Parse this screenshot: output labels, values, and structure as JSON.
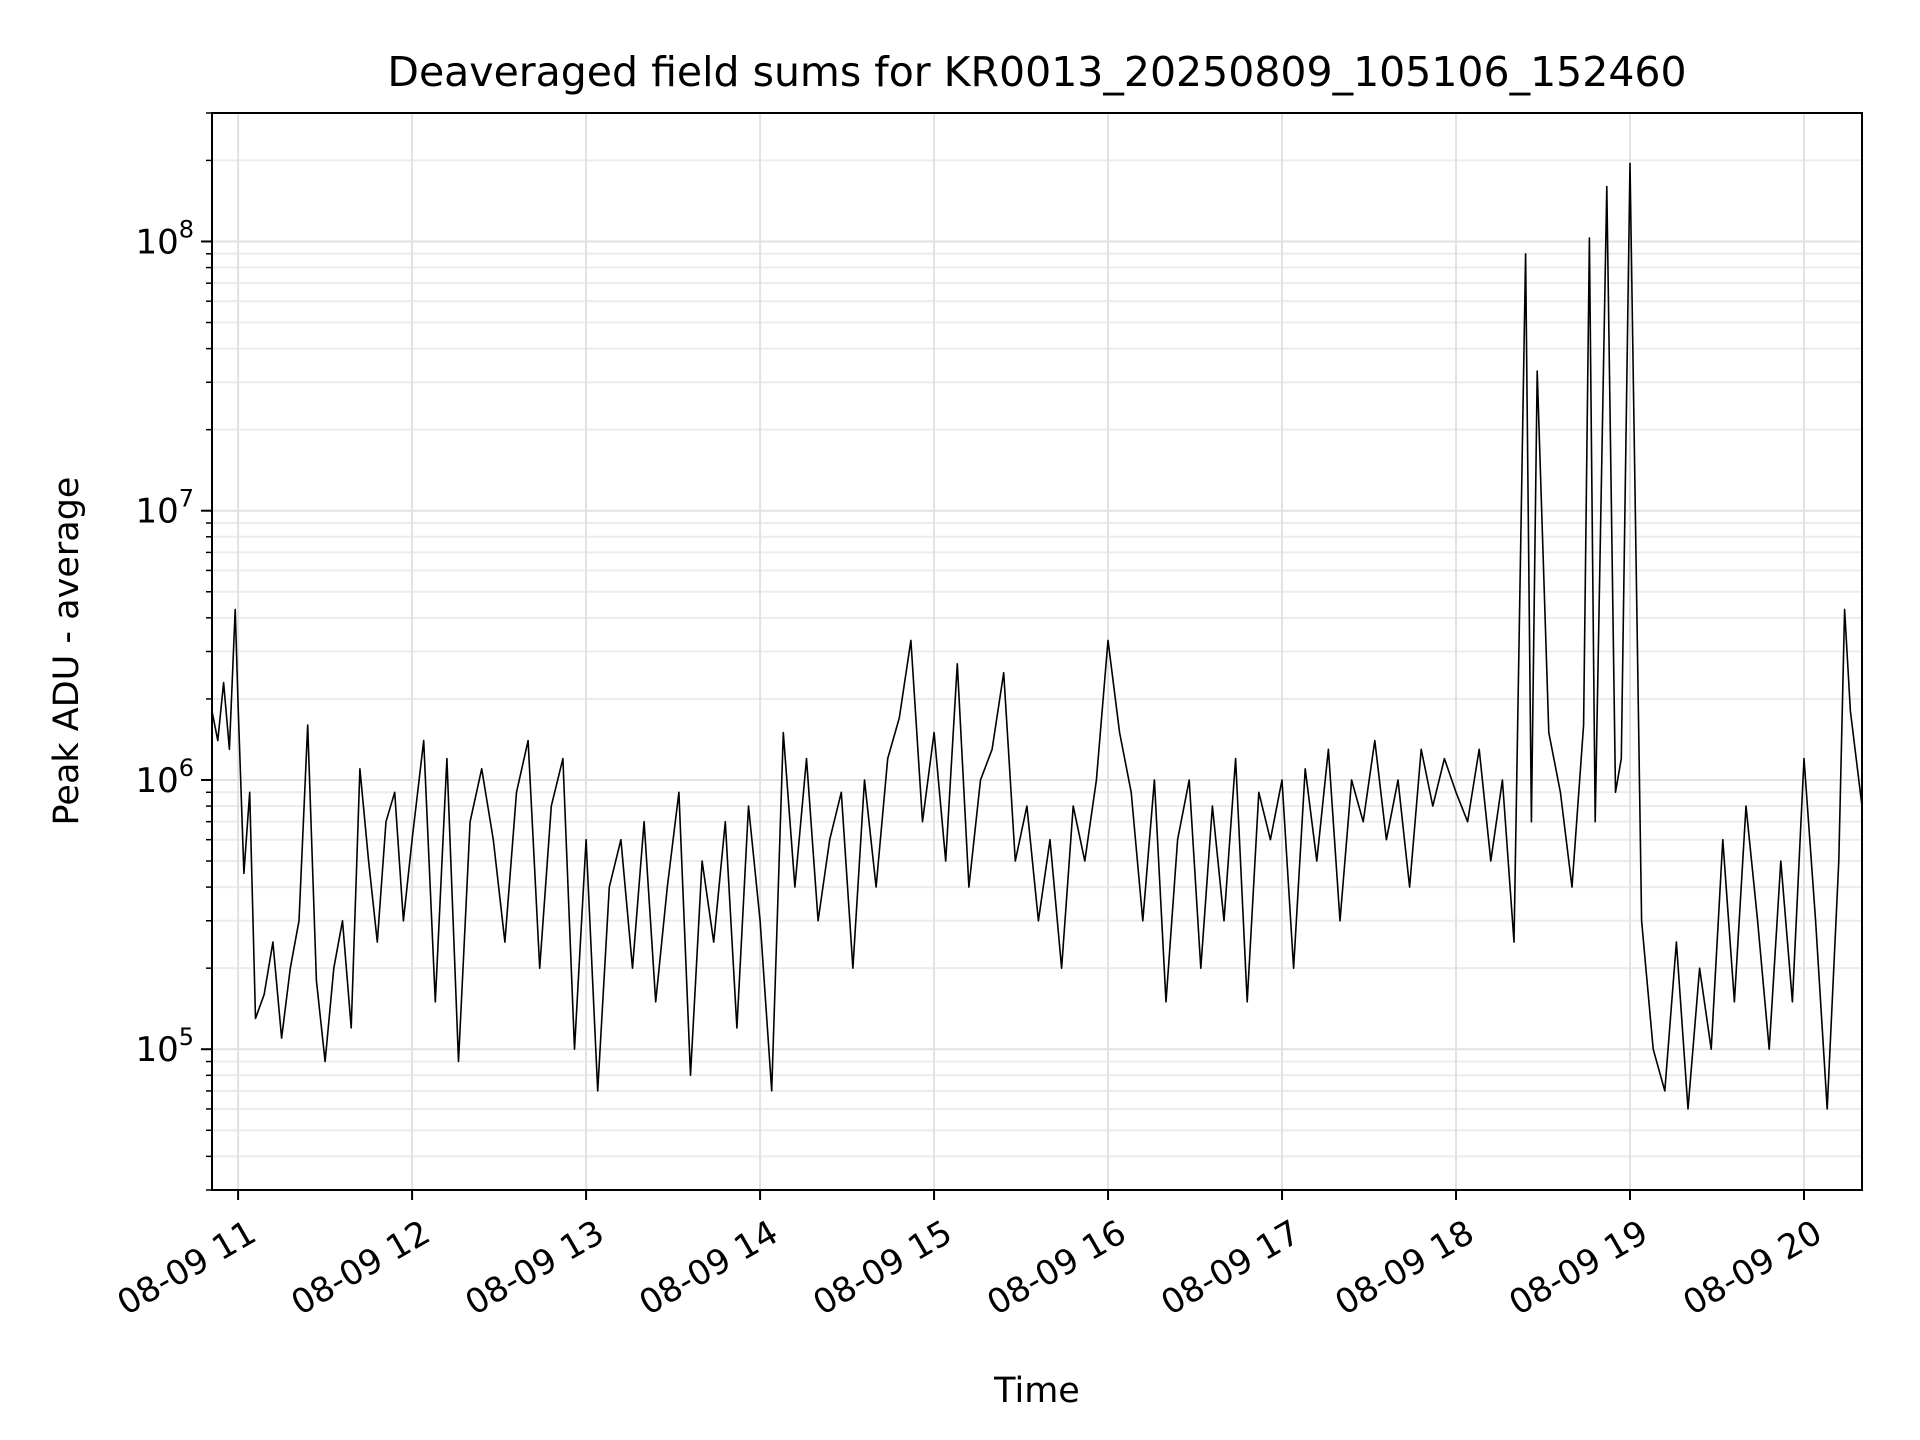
{
  "chart_data": {
    "type": "line",
    "title": "Deaveraged field sums for KR0013_20250809_105106_152460",
    "xlabel": "Time",
    "ylabel": "Peak ADU - average",
    "yscale": "log",
    "ylim": [
      30000,
      300000000
    ],
    "xlim": [
      "2025-08-09 10:51",
      "2025-08-09 20:20"
    ],
    "grid": true,
    "grid_minor": true,
    "line_color": "#000000",
    "x_ticks": [
      {
        "value": "2025-08-09 11:00",
        "label": "08-09 11"
      },
      {
        "value": "2025-08-09 12:00",
        "label": "08-09 12"
      },
      {
        "value": "2025-08-09 13:00",
        "label": "08-09 13"
      },
      {
        "value": "2025-08-09 14:00",
        "label": "08-09 14"
      },
      {
        "value": "2025-08-09 15:00",
        "label": "08-09 15"
      },
      {
        "value": "2025-08-09 16:00",
        "label": "08-09 16"
      },
      {
        "value": "2025-08-09 17:00",
        "label": "08-09 17"
      },
      {
        "value": "2025-08-09 18:00",
        "label": "08-09 18"
      },
      {
        "value": "2025-08-09 19:00",
        "label": "08-09 19"
      },
      {
        "value": "2025-08-09 20:00",
        "label": "08-09 20"
      }
    ],
    "y_ticks": [
      {
        "value": 100000,
        "base": "10",
        "exp": "5"
      },
      {
        "value": 1000000,
        "base": "10",
        "exp": "6"
      },
      {
        "value": 10000000,
        "base": "10",
        "exp": "7"
      },
      {
        "value": 100000000,
        "base": "10",
        "exp": "8"
      }
    ],
    "series": [
      {
        "x": [
          "10:51",
          "10:53",
          "10:55",
          "10:57",
          "10:59",
          "11:00",
          "11:02",
          "11:04",
          "11:06",
          "11:09",
          "11:12",
          "11:15",
          "11:18",
          "11:21",
          "11:24",
          "11:27",
          "11:30",
          "11:33",
          "11:36",
          "11:39",
          "11:42",
          "11:45",
          "11:48",
          "11:51",
          "11:54",
          "11:57",
          "12:00",
          "12:04",
          "12:08",
          "12:12",
          "12:16",
          "12:20",
          "12:24",
          "12:28",
          "12:32",
          "12:36",
          "12:40",
          "12:44",
          "12:48",
          "12:52",
          "12:56",
          "13:00",
          "13:04",
          "13:08",
          "13:12",
          "13:16",
          "13:20",
          "13:24",
          "13:28",
          "13:32",
          "13:36",
          "13:40",
          "13:44",
          "13:48",
          "13:52",
          "13:56",
          "14:00",
          "14:04",
          "14:08",
          "14:12",
          "14:16",
          "14:20",
          "14:24",
          "14:28",
          "14:32",
          "14:36",
          "14:40",
          "14:44",
          "14:48",
          "14:52",
          "14:56",
          "15:00",
          "15:04",
          "15:08",
          "15:12",
          "15:16",
          "15:20",
          "15:24",
          "15:28",
          "15:32",
          "15:36",
          "15:40",
          "15:44",
          "15:48",
          "15:52",
          "15:56",
          "16:00",
          "16:04",
          "16:08",
          "16:12",
          "16:16",
          "16:20",
          "16:24",
          "16:28",
          "16:32",
          "16:36",
          "16:40",
          "16:44",
          "16:48",
          "16:52",
          "16:56",
          "17:00",
          "17:04",
          "17:08",
          "17:12",
          "17:16",
          "17:20",
          "17:24",
          "17:28",
          "17:32",
          "17:36",
          "17:40",
          "17:44",
          "17:48",
          "17:52",
          "17:56",
          "18:00",
          "18:04",
          "18:08",
          "18:12",
          "18:16",
          "18:20",
          "18:24",
          "18:26",
          "18:28",
          "18:32",
          "18:36",
          "18:40",
          "18:44",
          "18:46",
          "18:48",
          "18:52",
          "18:55",
          "18:57",
          "19:00",
          "19:04",
          "19:08",
          "19:12",
          "19:16",
          "19:20",
          "19:24",
          "19:28",
          "19:32",
          "19:36",
          "19:40",
          "19:44",
          "19:48",
          "19:52",
          "19:56",
          "20:00",
          "20:04",
          "20:08",
          "20:12",
          "20:14",
          "20:16",
          "20:18",
          "20:20"
        ],
        "y": [
          1800000,
          1400000,
          2300000,
          1300000,
          4300000,
          1900000,
          450000,
          900000,
          130000,
          160000,
          250000,
          110000,
          200000,
          300000,
          1600000,
          180000,
          90000,
          200000,
          300000,
          120000,
          1100000,
          500000,
          250000,
          700000,
          900000,
          300000,
          600000,
          1400000,
          150000,
          1200000,
          90000,
          700000,
          1100000,
          600000,
          250000,
          900000,
          1400000,
          200000,
          800000,
          1200000,
          100000,
          600000,
          70000,
          400000,
          600000,
          200000,
          700000,
          150000,
          400000,
          900000,
          80000,
          500000,
          250000,
          700000,
          120000,
          800000,
          300000,
          70000,
          1500000,
          400000,
          1200000,
          300000,
          600000,
          900000,
          200000,
          1000000,
          400000,
          1200000,
          1700000,
          3300000,
          700000,
          1500000,
          500000,
          2700000,
          400000,
          1000000,
          1300000,
          2500000,
          500000,
          800000,
          300000,
          600000,
          200000,
          800000,
          500000,
          1000000,
          3300000,
          1500000,
          900000,
          300000,
          1000000,
          150000,
          600000,
          1000000,
          200000,
          800000,
          300000,
          1200000,
          150000,
          900000,
          600000,
          1000000,
          200000,
          1100000,
          500000,
          1300000,
          300000,
          1000000,
          700000,
          1400000,
          600000,
          1000000,
          400000,
          1300000,
          800000,
          1200000,
          900000,
          700000,
          1300000,
          500000,
          1000000,
          250000,
          90000000,
          700000,
          33000000,
          1500000,
          900000,
          400000,
          1600000,
          103000000,
          700000,
          160000000,
          900000,
          1200000,
          195000000,
          300000,
          100000,
          70000,
          250000,
          60000,
          200000,
          100000,
          600000,
          150000,
          800000,
          300000,
          100000,
          500000,
          150000,
          1200000,
          300000,
          60000,
          500000,
          4300000,
          1800000,
          1200000,
          800000
        ]
      }
    ]
  }
}
